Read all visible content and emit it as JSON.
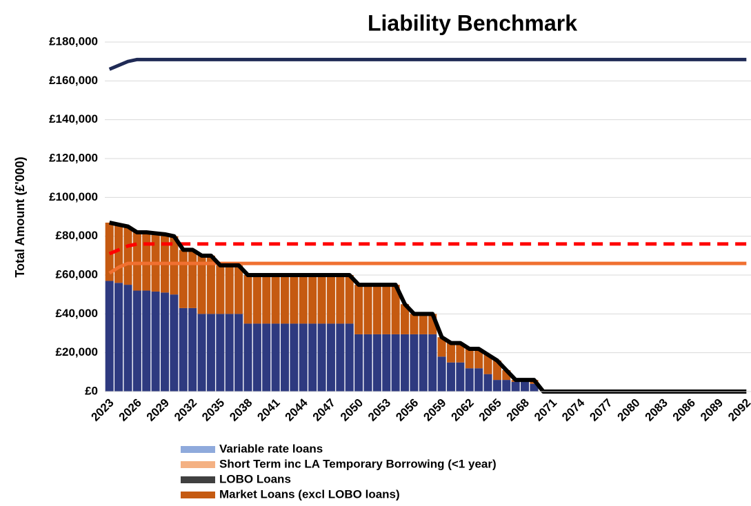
{
  "chart_data": {
    "type": "bar",
    "title": "Liability Benchmark",
    "y_label": "Total Amount (£'000)",
    "grid": true,
    "categories": [
      "2023",
      null,
      null,
      "2026",
      null,
      null,
      "2029",
      null,
      null,
      "2032",
      null,
      null,
      "2035",
      null,
      null,
      "2038",
      null,
      null,
      "2041",
      null,
      null,
      "2044",
      null,
      null,
      "2047",
      null,
      null,
      "2050",
      null,
      null,
      "2053",
      null,
      null,
      "2056",
      null,
      null,
      "2059",
      null,
      null,
      "2062",
      null,
      null,
      "2065",
      null,
      null,
      "2068",
      null,
      null,
      "2071",
      null,
      null,
      "2074",
      null,
      null,
      "2077",
      null,
      null,
      "2080",
      null,
      null,
      "2083",
      null,
      null,
      "2086",
      null,
      null,
      "2089",
      null,
      null,
      "2092"
    ],
    "ylim": [
      0,
      180000
    ],
    "yticks": [
      {
        "value": 0,
        "label": "£0"
      },
      {
        "value": 20000,
        "label": "£20,000"
      },
      {
        "value": 40000,
        "label": "£40,000"
      },
      {
        "value": 60000,
        "label": "£60,000"
      },
      {
        "value": 80000,
        "label": "£80,000"
      },
      {
        "value": 100000,
        "label": "£100,000"
      },
      {
        "value": 120000,
        "label": "£120,000"
      },
      {
        "value": 140000,
        "label": "£140,000"
      },
      {
        "value": 160000,
        "label": "£160,000"
      },
      {
        "value": 180000,
        "label": "£180,000"
      }
    ],
    "series": [
      {
        "kind": "bar",
        "color": "#2e3a80",
        "values": [
          57000,
          56000,
          55000,
          52000,
          52000,
          51500,
          51000,
          50000,
          43000,
          43000,
          40000,
          40000,
          40000,
          40000,
          40000,
          35000,
          35000,
          35000,
          35000,
          35000,
          35000,
          35000,
          35000,
          35000,
          35000,
          35000,
          35000,
          29500,
          29500,
          29500,
          29500,
          29500,
          29500,
          29500,
          29500,
          29500,
          18000,
          15000,
          15000,
          12000,
          12000,
          9000,
          6000,
          6000,
          5000,
          5000,
          4000,
          0,
          0,
          0,
          0,
          0,
          0,
          0,
          0,
          0,
          0,
          0,
          0,
          0,
          0,
          0,
          0,
          0,
          0,
          0,
          0,
          0,
          0,
          0
        ]
      },
      {
        "kind": "bar",
        "name": "Variable rate loans",
        "color": "#8faadc",
        "values": [
          0,
          0,
          0,
          0,
          0,
          0,
          0,
          0,
          0,
          0,
          0,
          0,
          0,
          0,
          0,
          0,
          0,
          0,
          0,
          0,
          0,
          0,
          0,
          0,
          0,
          0,
          0,
          0,
          0,
          0,
          0,
          0,
          0,
          0,
          0,
          0,
          0,
          0,
          0,
          0,
          0,
          0,
          0,
          0,
          0,
          0,
          0,
          0,
          0,
          0,
          0,
          0,
          0,
          0,
          0,
          0,
          0,
          0,
          0,
          0,
          0,
          0,
          0,
          0,
          0,
          0,
          0,
          0,
          0,
          0
        ]
      },
      {
        "kind": "bar",
        "name": "Short Term inc LA Temporary Borrowing (<1 year)",
        "color": "#f4b183",
        "values": [
          0,
          0,
          0,
          0,
          0,
          0,
          0,
          0,
          0,
          0,
          0,
          0,
          0,
          0,
          0,
          0,
          0,
          0,
          0,
          0,
          0,
          0,
          0,
          0,
          0,
          0,
          0,
          0,
          0,
          0,
          0,
          0,
          0,
          0,
          0,
          0,
          0,
          0,
          0,
          0,
          0,
          0,
          0,
          0,
          0,
          0,
          0,
          0,
          0,
          0,
          0,
          0,
          0,
          0,
          0,
          0,
          0,
          0,
          0,
          0,
          0,
          0,
          0,
          0,
          0,
          0,
          0,
          0,
          0,
          0
        ]
      },
      {
        "kind": "bar",
        "name": "LOBO Loans",
        "color": "#404040",
        "values": [
          0,
          0,
          0,
          0,
          0,
          0,
          0,
          0,
          0,
          0,
          0,
          0,
          0,
          0,
          0,
          0,
          0,
          0,
          0,
          0,
          0,
          0,
          0,
          0,
          0,
          0,
          0,
          0,
          0,
          0,
          0,
          0,
          0,
          0,
          0,
          0,
          0,
          0,
          0,
          0,
          0,
          0,
          0,
          0,
          0,
          0,
          0,
          0,
          0,
          0,
          0,
          0,
          0,
          0,
          0,
          0,
          0,
          0,
          0,
          0,
          0,
          0,
          0,
          0,
          0,
          0,
          0,
          0,
          0,
          0
        ]
      },
      {
        "kind": "bar",
        "name": "Market Loans (excl LOBO loans)",
        "color": "#c55a11",
        "values": [
          30000,
          30000,
          30000,
          30000,
          30000,
          30000,
          30000,
          30000,
          30000,
          30000,
          30000,
          30000,
          25000,
          25000,
          25000,
          25000,
          25000,
          25000,
          25000,
          25000,
          25000,
          25000,
          25000,
          25000,
          25000,
          25000,
          25000,
          25500,
          25500,
          25500,
          25500,
          25500,
          15500,
          10500,
          10500,
          10500,
          10000,
          10000,
          10000,
          10000,
          10000,
          10000,
          10000,
          5000,
          1000,
          1000,
          2000,
          0,
          0,
          0,
          0,
          0,
          0,
          0,
          0,
          0,
          0,
          0,
          0,
          0,
          0,
          0,
          0,
          0,
          0,
          0,
          0,
          0,
          0,
          0
        ]
      },
      {
        "kind": "line",
        "color": "#1f2a55",
        "values": [
          166000,
          168000,
          170000,
          171000,
          171000,
          171000,
          171000,
          171000,
          171000,
          171000,
          171000,
          171000,
          171000,
          171000,
          171000,
          171000,
          171000,
          171000,
          171000,
          171000,
          171000,
          171000,
          171000,
          171000,
          171000,
          171000,
          171000,
          171000,
          171000,
          171000,
          171000,
          171000,
          171000,
          171000,
          171000,
          171000,
          171000,
          171000,
          171000,
          171000,
          171000,
          171000,
          171000,
          171000,
          171000,
          171000,
          171000,
          171000,
          171000,
          171000,
          171000,
          171000,
          171000,
          171000,
          171000,
          171000,
          171000,
          171000,
          171000,
          171000,
          171000,
          171000,
          171000,
          171000,
          171000,
          171000,
          171000,
          171000,
          171000,
          171000
        ]
      },
      {
        "kind": "line",
        "dashed": true,
        "color": "#ff0000",
        "values": [
          71000,
          73000,
          75000,
          76000,
          76000,
          76000,
          76000,
          76000,
          76000,
          76000,
          76000,
          76000,
          76000,
          76000,
          76000,
          76000,
          76000,
          76000,
          76000,
          76000,
          76000,
          76000,
          76000,
          76000,
          76000,
          76000,
          76000,
          76000,
          76000,
          76000,
          76000,
          76000,
          76000,
          76000,
          76000,
          76000,
          76000,
          76000,
          76000,
          76000,
          76000,
          76000,
          76000,
          76000,
          76000,
          76000,
          76000,
          76000,
          76000,
          76000,
          76000,
          76000,
          76000,
          76000,
          76000,
          76000,
          76000,
          76000,
          76000,
          76000,
          76000,
          76000,
          76000,
          76000,
          76000,
          76000,
          76000,
          76000,
          76000,
          76000
        ]
      },
      {
        "kind": "line",
        "color": "#f07030",
        "values": [
          61000,
          64000,
          66000,
          66000,
          66000,
          66000,
          66000,
          66000,
          66000,
          66000,
          66000,
          66000,
          66000,
          66000,
          66000,
          66000,
          66000,
          66000,
          66000,
          66000,
          66000,
          66000,
          66000,
          66000,
          66000,
          66000,
          66000,
          66000,
          66000,
          66000,
          66000,
          66000,
          66000,
          66000,
          66000,
          66000,
          66000,
          66000,
          66000,
          66000,
          66000,
          66000,
          66000,
          66000,
          66000,
          66000,
          66000,
          66000,
          66000,
          66000,
          66000,
          66000,
          66000,
          66000,
          66000,
          66000,
          66000,
          66000,
          66000,
          66000,
          66000,
          66000,
          66000,
          66000,
          66000,
          66000,
          66000,
          66000,
          66000,
          66000
        ]
      },
      {
        "kind": "line",
        "color": "#000000",
        "values": [
          87000,
          86000,
          85000,
          82000,
          82000,
          81500,
          81000,
          80000,
          73000,
          73000,
          70000,
          70000,
          65000,
          65000,
          65000,
          60000,
          60000,
          60000,
          60000,
          60000,
          60000,
          60000,
          60000,
          60000,
          60000,
          60000,
          60000,
          55000,
          55000,
          55000,
          55000,
          55000,
          45000,
          40000,
          40000,
          40000,
          28000,
          25000,
          25000,
          22000,
          22000,
          19000,
          16000,
          11000,
          6000,
          6000,
          6000,
          0,
          0,
          0,
          0,
          0,
          0,
          0,
          0,
          0,
          0,
          0,
          0,
          0,
          0,
          0,
          0,
          0,
          0,
          0,
          0,
          0,
          0,
          0
        ]
      }
    ]
  }
}
